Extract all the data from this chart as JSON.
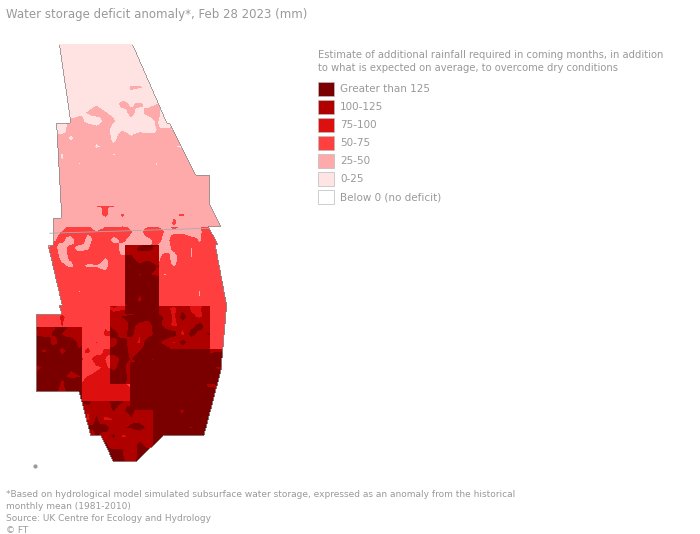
{
  "title": "Water storage deficit anomaly*, Feb 28 2023 (mm)",
  "legend_title_line1": "Estimate of additional rainfall required in coming months, in addition",
  "legend_title_line2": "to what is expected on average, to overcome dry conditions",
  "legend_entries": [
    {
      "label": "Greater than 125",
      "color": "#7B0000"
    },
    {
      "label": "100-125",
      "color": "#B00000"
    },
    {
      "label": "75-100",
      "color": "#DD1010"
    },
    {
      "label": "50-75",
      "color": "#FF4040"
    },
    {
      "label": "25-50",
      "color": "#FFAAAA"
    },
    {
      "label": "0-25",
      "color": "#FFE4E4"
    },
    {
      "label": "Below 0 (no deficit)",
      "color": "#FFFFFF"
    }
  ],
  "footnote1": "*Based on hydrological model simulated subsurface water storage, expressed as an anomaly from the historical",
  "footnote2": "monthly mean (1981-2010)",
  "footnote3": "Source: UK Centre for Ecology and Hydrology",
  "footnote4": "© FT",
  "background_color": "#FFFFFF",
  "text_color": "#999999",
  "title_color": "#999999",
  "border_color": "#AAAAAA"
}
